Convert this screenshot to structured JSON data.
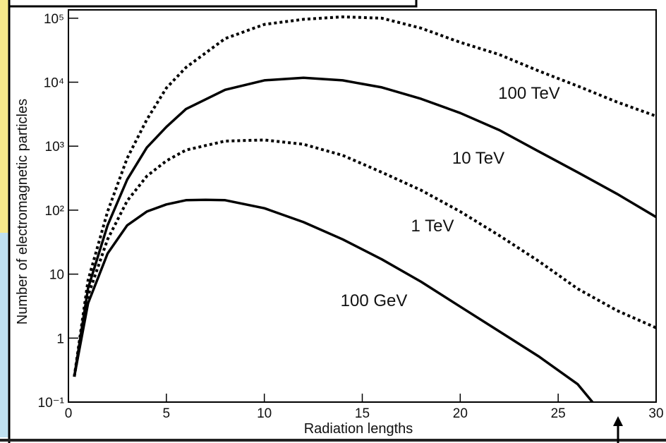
{
  "chart_data": {
    "type": "line",
    "x_label": "Radiation lengths",
    "y_label": "Number of electromagnetic particles",
    "log_y": true,
    "xlim": [
      0,
      30
    ],
    "ylim": [
      0.1,
      135000
    ],
    "xticks": [
      0,
      5,
      10,
      15,
      20,
      25,
      30
    ],
    "yticks": [
      {
        "value": 0.1,
        "label": "10⁻¹"
      },
      1,
      10,
      {
        "value": 100,
        "label": "10²"
      },
      {
        "value": 1000,
        "label": "10³"
      },
      {
        "value": 10000,
        "label": "10⁴"
      },
      {
        "value": 100000,
        "label": "10⁵"
      }
    ],
    "series": [
      {
        "name": "100 TeV",
        "color": "#000000",
        "dashed": true,
        "x": [
          0.3,
          1,
          2,
          3,
          4,
          5,
          6,
          8,
          10,
          12,
          14,
          16,
          18,
          20,
          22,
          24,
          26,
          28,
          30
        ],
        "values": [
          0.25,
          8,
          95,
          650,
          2600,
          8100,
          17000,
          48000,
          80000,
          96000,
          105000,
          100000,
          70000,
          42000,
          27000,
          15000,
          8700,
          4900,
          2950
        ]
      },
      {
        "name": "10 TeV",
        "color": "#000000",
        "dashed": false,
        "x": [
          0.3,
          1,
          2,
          3,
          4,
          5,
          6,
          8,
          10,
          12,
          14,
          16,
          18,
          20,
          22,
          24,
          26,
          28,
          30
        ],
        "values": [
          0.25,
          6,
          58,
          300,
          950,
          2000,
          3800,
          7600,
          10700,
          11700,
          10700,
          8300,
          5500,
          3300,
          1780,
          830,
          390,
          180,
          78
        ]
      },
      {
        "name": "1 TeV",
        "color": "#000000",
        "dashed": true,
        "x": [
          0.3,
          1,
          2,
          3,
          4,
          5,
          6,
          8,
          10,
          12,
          14,
          16,
          18,
          20,
          22,
          24,
          26,
          28,
          30
        ],
        "values": [
          0.25,
          4.6,
          35,
          140,
          340,
          590,
          870,
          1200,
          1250,
          1070,
          720,
          390,
          205,
          95,
          40,
          16,
          5.9,
          2.7,
          1.45
        ]
      },
      {
        "name": "100 GeV",
        "color": "#000000",
        "dashed": false,
        "x": [
          0.3,
          1,
          2,
          3,
          4,
          5,
          6,
          7,
          8,
          10,
          12,
          14,
          16,
          18,
          20,
          22,
          24,
          26,
          26.75
        ],
        "values": [
          0.25,
          3.5,
          21,
          58,
          95,
          123,
          143,
          145,
          143,
          107,
          65,
          35,
          17,
          7.6,
          3.1,
          1.27,
          0.52,
          0.19,
          0.1
        ]
      }
    ]
  }
}
